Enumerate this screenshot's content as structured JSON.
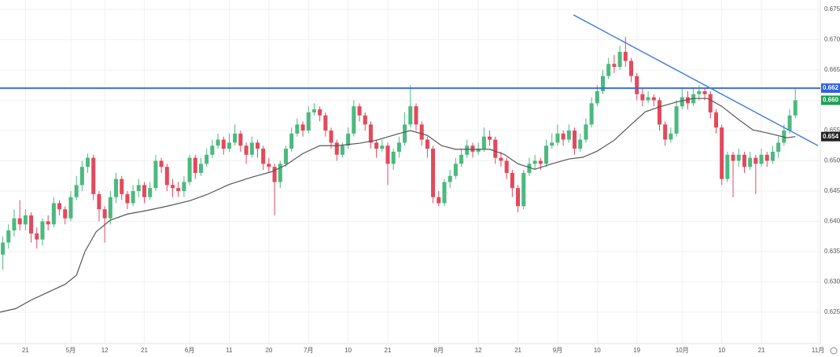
{
  "chart_data": {
    "type": "candlestick",
    "up_color": "#4cb97f",
    "down_color": "#e2495d",
    "xlim": [
      -0.5,
      144
    ],
    "ylim": [
      0.62,
      0.675
    ],
    "grid": true,
    "yticks": [
      0.625,
      {
        "value": 0.63,
        "label": "0.630"
      },
      0.635,
      {
        "value": 0.64,
        "label": "0.640"
      },
      0.645,
      {
        "value": 0.65,
        "label": "0.650"
      },
      0.655,
      {
        "value": 0.66,
        "label": "0.660"
      },
      0.665,
      {
        "value": 0.67,
        "label": "0.670"
      },
      0.675
    ],
    "xticks": [
      {
        "value": 4,
        "label": "21"
      },
      {
        "value": 12,
        "label": "5月"
      },
      {
        "value": 18,
        "label": "12"
      },
      {
        "value": 25,
        "label": "21"
      },
      {
        "value": 33,
        "label": "6月"
      },
      {
        "value": 40,
        "label": "11"
      },
      {
        "value": 47,
        "label": "20"
      },
      {
        "value": 54,
        "label": "7月"
      },
      {
        "value": 61,
        "label": "10"
      },
      {
        "value": 68,
        "label": "21"
      },
      {
        "value": 77,
        "label": "8月"
      },
      {
        "value": 84,
        "label": "12"
      },
      {
        "value": 91,
        "label": "21"
      },
      {
        "value": 98,
        "label": "9月"
      },
      {
        "value": 105,
        "label": "10"
      },
      {
        "value": 112,
        "label": "19"
      },
      {
        "value": 120,
        "label": "10月"
      },
      {
        "value": 127,
        "label": "10"
      },
      {
        "value": 134,
        "label": "21"
      },
      {
        "value": 144,
        "label": "11月"
      }
    ],
    "ohlc": [
      [
        0.6345,
        0.6375,
        0.632,
        0.6365
      ],
      [
        0.6365,
        0.6395,
        0.6355,
        0.6385
      ],
      [
        0.6385,
        0.642,
        0.6375,
        0.6405
      ],
      [
        0.6405,
        0.6435,
        0.6385,
        0.6395
      ],
      [
        0.6395,
        0.642,
        0.6385,
        0.641
      ],
      [
        0.641,
        0.6415,
        0.6365,
        0.638
      ],
      [
        0.638,
        0.639,
        0.6355,
        0.637
      ],
      [
        0.637,
        0.6405,
        0.636,
        0.64
      ],
      [
        0.64,
        0.641,
        0.6385,
        0.6395
      ],
      [
        0.6395,
        0.644,
        0.639,
        0.643
      ],
      [
        0.643,
        0.6435,
        0.641,
        0.642
      ],
      [
        0.642,
        0.6425,
        0.6395,
        0.6405
      ],
      [
        0.6405,
        0.645,
        0.64,
        0.644
      ],
      [
        0.644,
        0.6475,
        0.6435,
        0.646
      ],
      [
        0.646,
        0.65,
        0.645,
        0.649
      ],
      [
        0.649,
        0.6512,
        0.648,
        0.6505
      ],
      [
        0.6505,
        0.651,
        0.6435,
        0.6445
      ],
      [
        0.6445,
        0.645,
        0.64,
        0.642
      ],
      [
        0.642,
        0.6425,
        0.6365,
        0.6405
      ],
      [
        0.6405,
        0.645,
        0.6395,
        0.644
      ],
      [
        0.644,
        0.648,
        0.643,
        0.647
      ],
      [
        0.647,
        0.6475,
        0.6435,
        0.6445
      ],
      [
        0.6445,
        0.645,
        0.642,
        0.643
      ],
      [
        0.643,
        0.646,
        0.6425,
        0.645
      ],
      [
        0.645,
        0.647,
        0.644,
        0.646
      ],
      [
        0.646,
        0.6465,
        0.643,
        0.644
      ],
      [
        0.644,
        0.6465,
        0.6435,
        0.6455
      ],
      [
        0.6455,
        0.651,
        0.645,
        0.65
      ],
      [
        0.65,
        0.6505,
        0.648,
        0.649
      ],
      [
        0.649,
        0.6495,
        0.645,
        0.646
      ],
      [
        0.646,
        0.647,
        0.644,
        0.6455
      ],
      [
        0.6455,
        0.6465,
        0.644,
        0.645
      ],
      [
        0.645,
        0.6475,
        0.644,
        0.6465
      ],
      [
        0.6465,
        0.651,
        0.646,
        0.6505
      ],
      [
        0.6505,
        0.651,
        0.647,
        0.648
      ],
      [
        0.648,
        0.6505,
        0.6475,
        0.6495
      ],
      [
        0.6495,
        0.652,
        0.649,
        0.651
      ],
      [
        0.651,
        0.6535,
        0.6505,
        0.6525
      ],
      [
        0.6525,
        0.6545,
        0.652,
        0.6535
      ],
      [
        0.6535,
        0.654,
        0.651,
        0.652
      ],
      [
        0.652,
        0.6545,
        0.6515,
        0.653
      ],
      [
        0.653,
        0.656,
        0.6525,
        0.6545
      ],
      [
        0.6545,
        0.655,
        0.6515,
        0.6525
      ],
      [
        0.6525,
        0.653,
        0.6495,
        0.651
      ],
      [
        0.651,
        0.654,
        0.6505,
        0.653
      ],
      [
        0.653,
        0.6535,
        0.6505,
        0.652
      ],
      [
        0.652,
        0.6525,
        0.6485,
        0.6495
      ],
      [
        0.6495,
        0.6505,
        0.648,
        0.649
      ],
      [
        0.649,
        0.6495,
        0.641,
        0.6465
      ],
      [
        0.6465,
        0.65,
        0.6455,
        0.6495
      ],
      [
        0.6495,
        0.6525,
        0.649,
        0.652
      ],
      [
        0.652,
        0.6555,
        0.6515,
        0.6545
      ],
      [
        0.6545,
        0.657,
        0.654,
        0.656
      ],
      [
        0.656,
        0.6565,
        0.654,
        0.655
      ],
      [
        0.655,
        0.659,
        0.6545,
        0.658
      ],
      [
        0.658,
        0.6595,
        0.6575,
        0.6585
      ],
      [
        0.6585,
        0.659,
        0.6565,
        0.6575
      ],
      [
        0.6575,
        0.658,
        0.654,
        0.655
      ],
      [
        0.655,
        0.6555,
        0.652,
        0.653
      ],
      [
        0.653,
        0.6535,
        0.65,
        0.651
      ],
      [
        0.651,
        0.653,
        0.6505,
        0.6525
      ],
      [
        0.6525,
        0.6555,
        0.652,
        0.6545
      ],
      [
        0.6545,
        0.66,
        0.654,
        0.659
      ],
      [
        0.659,
        0.6595,
        0.6565,
        0.6575
      ],
      [
        0.6575,
        0.658,
        0.655,
        0.656
      ],
      [
        0.656,
        0.6565,
        0.652,
        0.653
      ],
      [
        0.653,
        0.6535,
        0.6505,
        0.652
      ],
      [
        0.652,
        0.6535,
        0.6515,
        0.6525
      ],
      [
        0.6525,
        0.653,
        0.646,
        0.6495
      ],
      [
        0.6495,
        0.652,
        0.6485,
        0.6515
      ],
      [
        0.6515,
        0.654,
        0.6505,
        0.653
      ],
      [
        0.653,
        0.658,
        0.6525,
        0.656
      ],
      [
        0.656,
        0.6625,
        0.6555,
        0.659
      ],
      [
        0.659,
        0.6595,
        0.655,
        0.656
      ],
      [
        0.656,
        0.6565,
        0.6525,
        0.6535
      ],
      [
        0.6535,
        0.654,
        0.6505,
        0.652
      ],
      [
        0.652,
        0.6525,
        0.643,
        0.644
      ],
      [
        0.644,
        0.645,
        0.6425,
        0.643
      ],
      [
        0.643,
        0.647,
        0.6425,
        0.6465
      ],
      [
        0.6465,
        0.6485,
        0.6455,
        0.6475
      ],
      [
        0.6475,
        0.6505,
        0.647,
        0.6495
      ],
      [
        0.6495,
        0.652,
        0.649,
        0.651
      ],
      [
        0.651,
        0.6535,
        0.6505,
        0.6525
      ],
      [
        0.6525,
        0.653,
        0.6505,
        0.6515
      ],
      [
        0.6515,
        0.653,
        0.651,
        0.652
      ],
      [
        0.652,
        0.6555,
        0.6515,
        0.654
      ],
      [
        0.654,
        0.655,
        0.6525,
        0.6535
      ],
      [
        0.6535,
        0.654,
        0.6495,
        0.6505
      ],
      [
        0.6505,
        0.6515,
        0.649,
        0.65
      ],
      [
        0.65,
        0.6505,
        0.647,
        0.648
      ],
      [
        0.648,
        0.6485,
        0.644,
        0.6455
      ],
      [
        0.6455,
        0.646,
        0.6415,
        0.6425
      ],
      [
        0.6425,
        0.6485,
        0.642,
        0.648
      ],
      [
        0.648,
        0.6505,
        0.6475,
        0.6495
      ],
      [
        0.6495,
        0.651,
        0.6485,
        0.65
      ],
      [
        0.65,
        0.6505,
        0.6485,
        0.6495
      ],
      [
        0.6495,
        0.6535,
        0.649,
        0.6525
      ],
      [
        0.6525,
        0.6545,
        0.652,
        0.653
      ],
      [
        0.653,
        0.656,
        0.6525,
        0.6545
      ],
      [
        0.6545,
        0.655,
        0.6525,
        0.6535
      ],
      [
        0.6535,
        0.656,
        0.653,
        0.655
      ],
      [
        0.655,
        0.6555,
        0.651,
        0.652
      ],
      [
        0.652,
        0.6545,
        0.6515,
        0.6535
      ],
      [
        0.6535,
        0.657,
        0.653,
        0.656
      ],
      [
        0.656,
        0.6605,
        0.6555,
        0.6595
      ],
      [
        0.6595,
        0.6625,
        0.659,
        0.6615
      ],
      [
        0.6615,
        0.665,
        0.661,
        0.664
      ],
      [
        0.664,
        0.667,
        0.6635,
        0.666
      ],
      [
        0.666,
        0.6675,
        0.6645,
        0.6655
      ],
      [
        0.6655,
        0.669,
        0.665,
        0.668
      ],
      [
        0.668,
        0.6705,
        0.6655,
        0.6665
      ],
      [
        0.6665,
        0.667,
        0.663,
        0.664
      ],
      [
        0.664,
        0.6645,
        0.66,
        0.661
      ],
      [
        0.661,
        0.662,
        0.659,
        0.66
      ],
      [
        0.66,
        0.6615,
        0.6595,
        0.6605
      ],
      [
        0.6605,
        0.661,
        0.659,
        0.66
      ],
      [
        0.66,
        0.6605,
        0.655,
        0.656
      ],
      [
        0.656,
        0.6565,
        0.6525,
        0.6535
      ],
      [
        0.6535,
        0.6555,
        0.653,
        0.6545
      ],
      [
        0.6545,
        0.66,
        0.654,
        0.659
      ],
      [
        0.659,
        0.662,
        0.6585,
        0.6605
      ],
      [
        0.6605,
        0.6615,
        0.6585,
        0.6595
      ],
      [
        0.6595,
        0.662,
        0.659,
        0.661
      ],
      [
        0.661,
        0.6625,
        0.66,
        0.6615
      ],
      [
        0.6615,
        0.662,
        0.66,
        0.661
      ],
      [
        0.661,
        0.6615,
        0.657,
        0.658
      ],
      [
        0.658,
        0.6585,
        0.6545,
        0.6555
      ],
      [
        0.6555,
        0.656,
        0.646,
        0.647
      ],
      [
        0.647,
        0.6515,
        0.6465,
        0.651
      ],
      [
        0.651,
        0.6515,
        0.644,
        0.65
      ],
      [
        0.65,
        0.652,
        0.649,
        0.651
      ],
      [
        0.651,
        0.6515,
        0.648,
        0.649
      ],
      [
        0.649,
        0.6515,
        0.6485,
        0.6505
      ],
      [
        0.6505,
        0.651,
        0.6445,
        0.6495
      ],
      [
        0.6495,
        0.652,
        0.649,
        0.651
      ],
      [
        0.651,
        0.6515,
        0.649,
        0.65
      ],
      [
        0.65,
        0.6525,
        0.6495,
        0.6515
      ],
      [
        0.6515,
        0.654,
        0.6505,
        0.653
      ],
      [
        0.653,
        0.656,
        0.6525,
        0.655
      ],
      [
        0.655,
        0.6585,
        0.6545,
        0.6575
      ],
      [
        0.6575,
        0.662,
        0.657,
        0.66
      ]
    ],
    "moving_average": {
      "color": "#555555",
      "x": [
        -0.5,
        2.3,
        5,
        8,
        11,
        13,
        14.5,
        16.5,
        19,
        22,
        25.5,
        29,
        33,
        36,
        40,
        44,
        47.5,
        50,
        53,
        56,
        59,
        63,
        66,
        70,
        72,
        75,
        77.5,
        80,
        83,
        86,
        88.5,
        91,
        94,
        97,
        100,
        102.5,
        105,
        108,
        111,
        113.5,
        116,
        119,
        122,
        124.5,
        127,
        130,
        132.5,
        135.5,
        138.5,
        140
      ],
      "values": [
        0.625,
        0.6256,
        0.627,
        0.6283,
        0.6296,
        0.6311,
        0.635,
        0.6383,
        0.6402,
        0.6412,
        0.6418,
        0.6425,
        0.6434,
        0.6444,
        0.6461,
        0.6473,
        0.6482,
        0.6493,
        0.6512,
        0.6525,
        0.6525,
        0.6529,
        0.6534,
        0.6545,
        0.655,
        0.6542,
        0.6525,
        0.6519,
        0.6519,
        0.6519,
        0.6511,
        0.6495,
        0.6486,
        0.6495,
        0.6503,
        0.6506,
        0.6516,
        0.6534,
        0.656,
        0.6581,
        0.6589,
        0.6597,
        0.6603,
        0.6603,
        0.659,
        0.6568,
        0.6551,
        0.6545,
        0.6538,
        0.654
      ]
    },
    "horizontal_line": {
      "value": 0.662,
      "color": "#3f6fd8"
    },
    "trend_line": {
      "color": "#4a7fdc",
      "x": [
        100.8,
        144
      ],
      "values": [
        0.6741,
        0.6525
      ]
    },
    "price_labels": [
      {
        "value": 0.662,
        "color": "#2f62e0"
      },
      {
        "value": 0.66,
        "label": "0.660",
        "color": "#1f9e55"
      },
      {
        "value": 0.654,
        "color": "#222222"
      }
    ]
  }
}
